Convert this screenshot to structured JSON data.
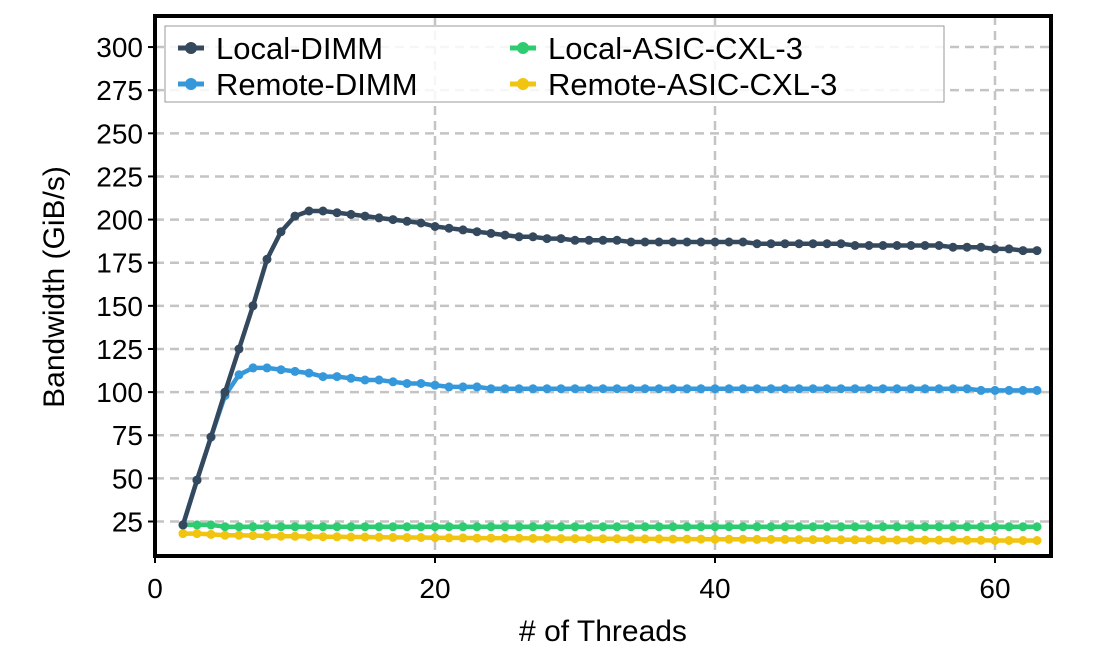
{
  "chart_data": {
    "type": "line",
    "xlabel": "# of Threads",
    "ylabel": "Bandwidth (GiB/s)",
    "xlim": [
      0,
      64
    ],
    "ylim": [
      5,
      318
    ],
    "xticks": [
      0,
      20,
      40,
      60
    ],
    "yticks": [
      25,
      50,
      75,
      100,
      125,
      150,
      175,
      200,
      225,
      250,
      275,
      300
    ],
    "grid": true,
    "legend_position": "top",
    "x": [
      2,
      3,
      4,
      5,
      6,
      7,
      8,
      9,
      10,
      11,
      12,
      13,
      14,
      15,
      16,
      17,
      18,
      19,
      20,
      21,
      22,
      23,
      24,
      25,
      26,
      27,
      28,
      29,
      30,
      31,
      32,
      33,
      34,
      35,
      36,
      37,
      38,
      39,
      40,
      41,
      42,
      43,
      44,
      45,
      46,
      47,
      48,
      49,
      50,
      51,
      52,
      53,
      54,
      55,
      56,
      57,
      58,
      59,
      60,
      61,
      62,
      63
    ],
    "series": [
      {
        "name": "Local-DIMM",
        "color": "#34495e",
        "values": [
          23,
          49,
          74,
          100,
          125,
          150,
          177,
          193,
          202,
          205,
          205,
          204,
          203,
          202,
          201,
          200,
          199,
          198,
          196,
          195,
          194,
          193,
          192,
          191,
          190,
          190,
          189,
          189,
          188,
          188,
          188,
          188,
          187,
          187,
          187,
          187,
          187,
          187,
          187,
          187,
          187,
          186,
          186,
          186,
          186,
          186,
          186,
          186,
          185,
          185,
          185,
          185,
          185,
          185,
          185,
          184,
          184,
          184,
          183,
          183,
          182,
          182
        ]
      },
      {
        "name": "Remote-DIMM",
        "color": "#3498db",
        "values": [
          23,
          49,
          74,
          98,
          110,
          114,
          114,
          113,
          112,
          111,
          109,
          109,
          108,
          107,
          107,
          106,
          105,
          105,
          104,
          103,
          103,
          103,
          102,
          102,
          102,
          102,
          102,
          102,
          102,
          102,
          102,
          102,
          102,
          102,
          102,
          102,
          102,
          102,
          102,
          102,
          102,
          102,
          102,
          102,
          102,
          102,
          102,
          102,
          102,
          102,
          102,
          102,
          102,
          102,
          102,
          102,
          102,
          101,
          101,
          101,
          101,
          101
        ]
      },
      {
        "name": "Local-ASIC-CXL-3",
        "color": "#2ecc71",
        "values": [
          23,
          23,
          23,
          22,
          22,
          22,
          22,
          22,
          22,
          22,
          22,
          22,
          22,
          22,
          22,
          22,
          22,
          22,
          22,
          22,
          22,
          22,
          22,
          22,
          22,
          22,
          22,
          22,
          22,
          22,
          22,
          22,
          22,
          22,
          22,
          22,
          22,
          22,
          22,
          22,
          22,
          22,
          22,
          22,
          22,
          22,
          22,
          22,
          22,
          22,
          22,
          22,
          22,
          22,
          22,
          22,
          22,
          22,
          22,
          22,
          22,
          22
        ]
      },
      {
        "name": "Remote-ASIC-CXL-3",
        "color": "#f1c40f",
        "values": [
          18,
          18,
          17.5,
          17,
          17,
          16.8,
          16.6,
          16.5,
          16.4,
          16.3,
          16.2,
          16.1,
          16,
          16,
          15.9,
          15.8,
          15.7,
          15.7,
          15.6,
          15.5,
          15.5,
          15.4,
          15.4,
          15.3,
          15.3,
          15.2,
          15.2,
          15.1,
          15.1,
          15,
          15,
          15,
          14.9,
          14.9,
          14.9,
          14.8,
          14.8,
          14.8,
          14.7,
          14.7,
          14.7,
          14.6,
          14.6,
          14.6,
          14.5,
          14.5,
          14.5,
          14.4,
          14.4,
          14.4,
          14.3,
          14.3,
          14.3,
          14.2,
          14.2,
          14.2,
          14.1,
          14.1,
          14,
          14,
          14,
          14
        ]
      }
    ]
  }
}
